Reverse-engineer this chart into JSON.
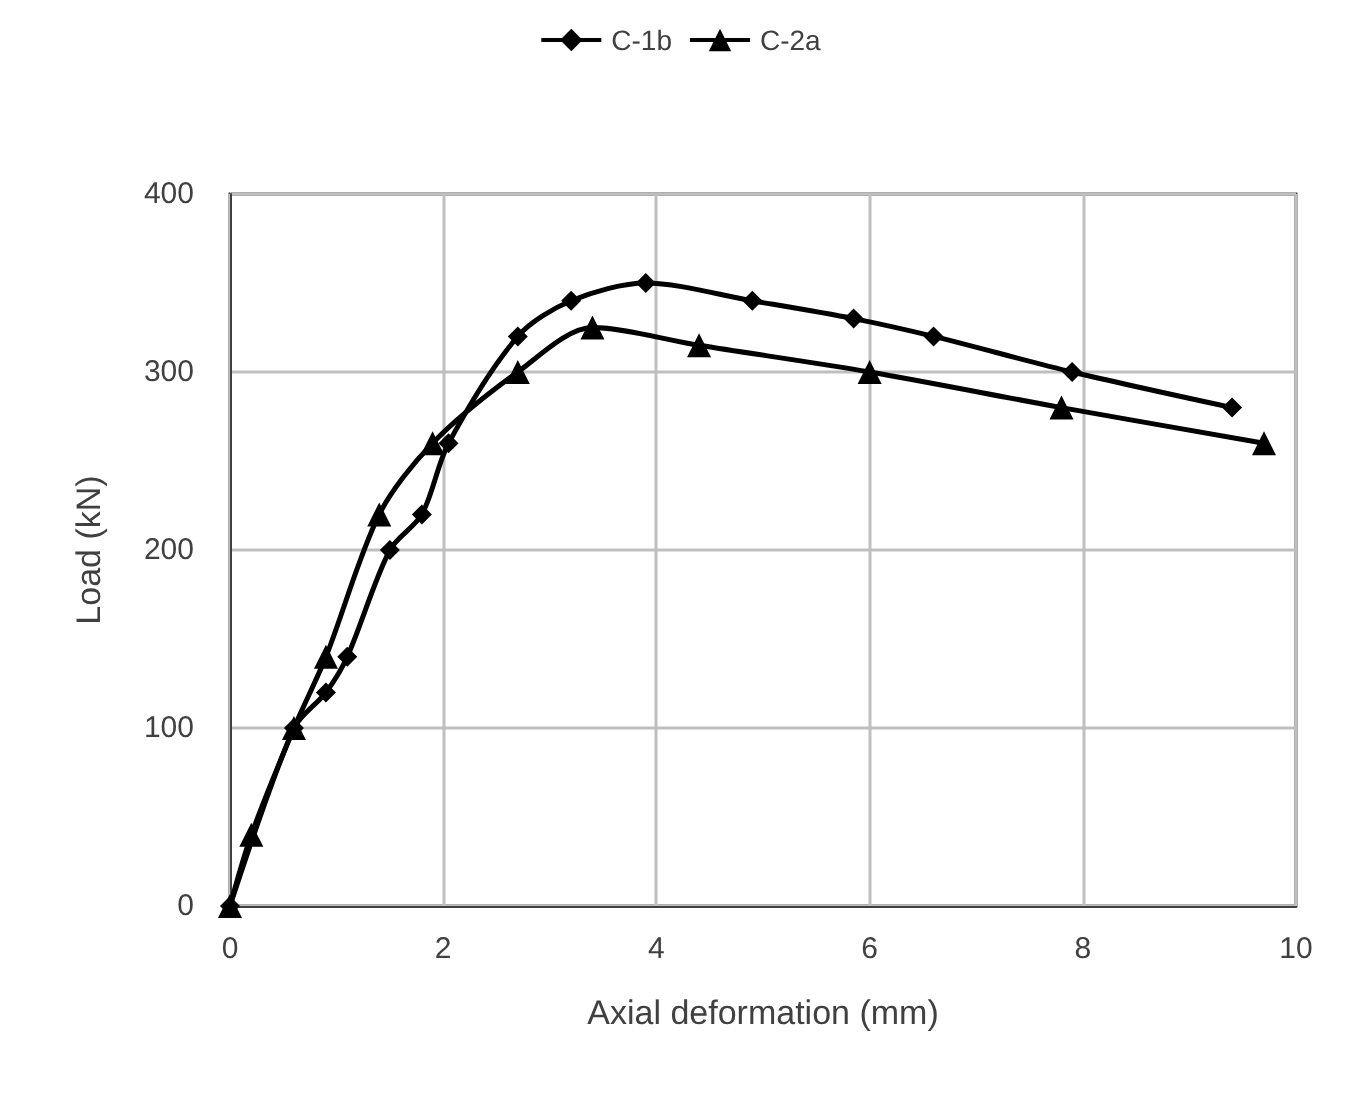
{
  "chart_data": {
    "type": "line",
    "xlabel": "Axial deformation (mm)",
    "ylabel": "Load (kN)",
    "xlim": [
      0,
      10
    ],
    "xticks": [
      0,
      2,
      4,
      6,
      8,
      10
    ],
    "ylim": [
      0,
      400
    ],
    "yticks": [
      0,
      100,
      200,
      300,
      400
    ],
    "grid": true,
    "legend": "top",
    "series": [
      {
        "name": "C-1b",
        "color": "#000000",
        "marker": "diamond",
        "x": [
          0,
          0.6,
          0.9,
          1.1,
          1.5,
          1.8,
          2.05,
          2.7,
          3.2,
          3.9,
          4.9,
          5.85,
          6.6,
          7.9,
          9.4
        ],
        "values": [
          0,
          100,
          120,
          140,
          200,
          220,
          260,
          320,
          340,
          350,
          340,
          330,
          320,
          300,
          280
        ]
      },
      {
        "name": "C-2a",
        "color": "#000000",
        "marker": "triangle",
        "x": [
          0,
          0.2,
          0.6,
          0.9,
          1.4,
          1.9,
          2.7,
          3.4,
          4.4,
          6.0,
          7.8,
          9.7
        ],
        "values": [
          0,
          40,
          100,
          140,
          220,
          260,
          300,
          325,
          315,
          300,
          280,
          260
        ]
      }
    ]
  }
}
